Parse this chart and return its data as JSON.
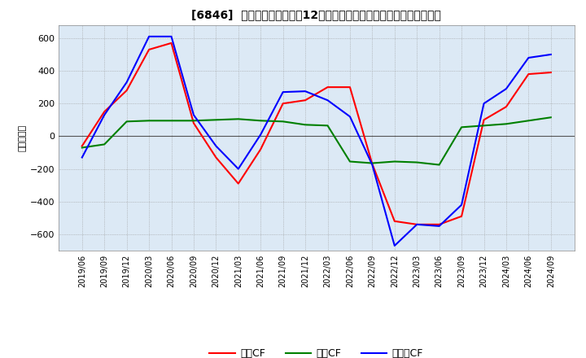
{
  "title": "[6846]  キャッシュフローの12か月移動合計の対前年同期増減額の推移",
  "ylabel": "（百万円）",
  "ylim": [
    -700,
    680
  ],
  "yticks": [
    -600,
    -400,
    -200,
    0,
    200,
    400,
    600
  ],
  "background_color": "#dce9f5",
  "grid_color": "#aaaaaa",
  "plot_bg_color": "#ffffff",
  "legend_labels": [
    "営業CF",
    "投資CF",
    "フリーCF"
  ],
  "line_colors": [
    "#ff0000",
    "#008000",
    "#0000ff"
  ],
  "x_labels": [
    "2019/06",
    "2019/09",
    "2019/12",
    "2020/03",
    "2020/06",
    "2020/09",
    "2020/12",
    "2021/03",
    "2021/06",
    "2021/09",
    "2021/12",
    "2022/03",
    "2022/06",
    "2022/09",
    "2022/12",
    "2023/03",
    "2023/06",
    "2023/09",
    "2023/12",
    "2024/03",
    "2024/06",
    "2024/09"
  ],
  "operating_cf": [
    -60,
    150,
    280,
    530,
    570,
    80,
    -130,
    -290,
    -80,
    200,
    220,
    300,
    300,
    -170,
    -520,
    -540,
    -540,
    -490,
    100,
    180,
    380,
    390
  ],
  "investing_cf": [
    -70,
    -50,
    90,
    95,
    95,
    95,
    100,
    105,
    95,
    90,
    70,
    65,
    -155,
    -165,
    -155,
    -160,
    -175,
    55,
    65,
    75,
    95,
    115
  ],
  "free_cf": [
    -130,
    130,
    330,
    610,
    610,
    130,
    -60,
    -200,
    10,
    270,
    275,
    220,
    120,
    -175,
    -670,
    -540,
    -550,
    -420,
    200,
    290,
    480,
    500
  ]
}
